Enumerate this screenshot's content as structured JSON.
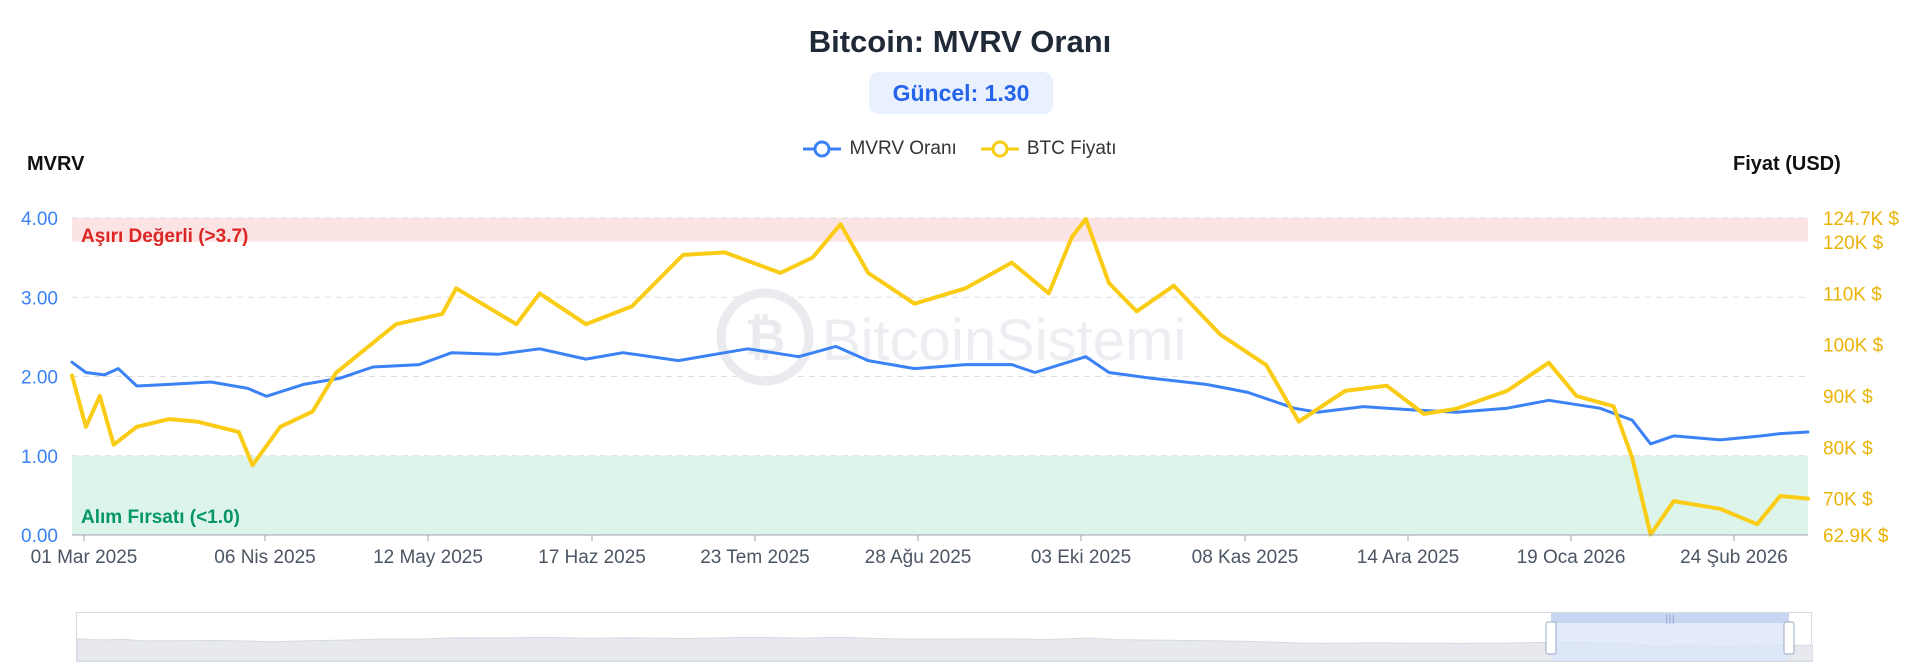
{
  "title": "Bitcoin: MVRV Oranı",
  "current": "Güncel: 1.30",
  "watermark": "BitcoinSistemi",
  "legend": [
    {
      "name": "MVRV Oranı",
      "color": "#3b82f6"
    },
    {
      "name": "BTC Fiyatı",
      "color": "#facc15"
    }
  ],
  "chart_data": {
    "type": "line",
    "left_axis": {
      "title": "MVRV",
      "ticks": [
        "0.00",
        "1.00",
        "2.00",
        "3.00",
        "4.00"
      ],
      "range": [
        0,
        4
      ]
    },
    "right_axis": {
      "title": "Fiyat (USD)",
      "ticks": [
        "62.9K $",
        "70K $",
        "80K $",
        "90K $",
        "100K $",
        "110K $",
        "120K $",
        "124.7K $"
      ],
      "range": [
        62900,
        124700
      ]
    },
    "x_ticks": [
      "01 Mar 2025",
      "06 Nis 2025",
      "12 May 2025",
      "17 Haz 2025",
      "23 Tem 2025",
      "28 Ağu 2025",
      "03 Eki 2025",
      "08 Kas 2025",
      "14 Ara 2025",
      "19 Oca 2026",
      "24 Şub 2026"
    ],
    "x_range": [
      "2025-03-01",
      "2026-03-11"
    ],
    "zones": [
      {
        "label": "Aşırı Değerli (>3.7)",
        "from": 3.7,
        "to": 4.0,
        "color": "#fde4e4",
        "label_color": "#dc2626"
      },
      {
        "label": "Alım Fırsatı (<1.0)",
        "from": 0.0,
        "to": 1.0,
        "color": "#dcf4ea",
        "label_color": "#059669"
      }
    ],
    "series": [
      {
        "name": "MVRV Oranı",
        "color": "#3b82f6",
        "axis": "left",
        "points": [
          [
            "2025-03-01",
            2.18
          ],
          [
            "2025-03-04",
            2.05
          ],
          [
            "2025-03-08",
            2.02
          ],
          [
            "2025-03-11",
            2.1
          ],
          [
            "2025-03-15",
            1.88
          ],
          [
            "2025-03-22",
            1.9
          ],
          [
            "2025-03-31",
            1.93
          ],
          [
            "2025-04-08",
            1.85
          ],
          [
            "2025-04-12",
            1.75
          ],
          [
            "2025-04-20",
            1.9
          ],
          [
            "2025-04-28",
            1.98
          ],
          [
            "2025-05-05",
            2.12
          ],
          [
            "2025-05-15",
            2.15
          ],
          [
            "2025-05-22",
            2.3
          ],
          [
            "2025-06-01",
            2.28
          ],
          [
            "2025-06-10",
            2.35
          ],
          [
            "2025-06-20",
            2.22
          ],
          [
            "2025-06-28",
            2.3
          ],
          [
            "2025-07-10",
            2.2
          ],
          [
            "2025-07-20",
            2.3
          ],
          [
            "2025-07-25",
            2.35
          ],
          [
            "2025-08-05",
            2.25
          ],
          [
            "2025-08-13",
            2.38
          ],
          [
            "2025-08-20",
            2.2
          ],
          [
            "2025-08-30",
            2.1
          ],
          [
            "2025-09-10",
            2.15
          ],
          [
            "2025-09-20",
            2.15
          ],
          [
            "2025-09-25",
            2.05
          ],
          [
            "2025-10-06",
            2.25
          ],
          [
            "2025-10-11",
            2.05
          ],
          [
            "2025-10-20",
            1.98
          ],
          [
            "2025-11-01",
            1.9
          ],
          [
            "2025-11-10",
            1.8
          ],
          [
            "2025-11-20",
            1.6
          ],
          [
            "2025-11-25",
            1.55
          ],
          [
            "2025-12-05",
            1.62
          ],
          [
            "2025-12-15",
            1.58
          ],
          [
            "2025-12-25",
            1.55
          ],
          [
            "2026-01-05",
            1.6
          ],
          [
            "2026-01-14",
            1.7
          ],
          [
            "2026-01-25",
            1.6
          ],
          [
            "2026-02-01",
            1.45
          ],
          [
            "2026-02-05",
            1.15
          ],
          [
            "2026-02-10",
            1.25
          ],
          [
            "2026-02-20",
            1.2
          ],
          [
            "2026-03-01",
            1.25
          ],
          [
            "2026-03-05",
            1.28
          ],
          [
            "2026-03-11",
            1.3
          ]
        ]
      },
      {
        "name": "BTC Fiyatı",
        "color": "#facc15",
        "axis": "right",
        "points": [
          [
            "2025-03-01",
            94000
          ],
          [
            "2025-03-04",
            84000
          ],
          [
            "2025-03-07",
            90000
          ],
          [
            "2025-03-10",
            80500
          ],
          [
            "2025-03-15",
            84000
          ],
          [
            "2025-03-22",
            85500
          ],
          [
            "2025-03-28",
            85000
          ],
          [
            "2025-04-06",
            83000
          ],
          [
            "2025-04-09",
            76500
          ],
          [
            "2025-04-15",
            84000
          ],
          [
            "2025-04-22",
            87000
          ],
          [
            "2025-04-27",
            94500
          ],
          [
            "2025-05-10",
            104000
          ],
          [
            "2025-05-20",
            106000
          ],
          [
            "2025-05-23",
            111000
          ],
          [
            "2025-06-05",
            104000
          ],
          [
            "2025-06-10",
            110000
          ],
          [
            "2025-06-20",
            104000
          ],
          [
            "2025-06-30",
            107500
          ],
          [
            "2025-07-11",
            117500
          ],
          [
            "2025-07-20",
            118000
          ],
          [
            "2025-08-01",
            114000
          ],
          [
            "2025-08-08",
            117000
          ],
          [
            "2025-08-14",
            123500
          ],
          [
            "2025-08-20",
            114000
          ],
          [
            "2025-08-30",
            108000
          ],
          [
            "2025-09-10",
            111000
          ],
          [
            "2025-09-20",
            116000
          ],
          [
            "2025-09-28",
            110000
          ],
          [
            "2025-10-03",
            121000
          ],
          [
            "2025-10-06",
            124500
          ],
          [
            "2025-10-11",
            112000
          ],
          [
            "2025-10-17",
            106500
          ],
          [
            "2025-10-25",
            111500
          ],
          [
            "2025-11-04",
            102000
          ],
          [
            "2025-11-14",
            96000
          ],
          [
            "2025-11-21",
            85000
          ],
          [
            "2025-12-01",
            91000
          ],
          [
            "2025-12-10",
            92000
          ],
          [
            "2025-12-18",
            86500
          ],
          [
            "2025-12-25",
            87500
          ],
          [
            "2026-01-05",
            91000
          ],
          [
            "2026-01-14",
            96500
          ],
          [
            "2026-01-20",
            90000
          ],
          [
            "2026-01-28",
            88000
          ],
          [
            "2026-02-01",
            78000
          ],
          [
            "2026-02-05",
            63000
          ],
          [
            "2026-02-10",
            69500
          ],
          [
            "2026-02-20",
            68000
          ],
          [
            "2026-02-28",
            65000
          ],
          [
            "2026-03-05",
            70500
          ],
          [
            "2026-03-11",
            70000
          ]
        ]
      }
    ]
  }
}
